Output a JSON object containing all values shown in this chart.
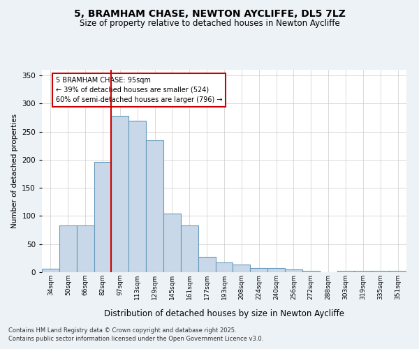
{
  "title1": "5, BRAMHAM CHASE, NEWTON AYCLIFFE, DL5 7LZ",
  "title2": "Size of property relative to detached houses in Newton Aycliffe",
  "xlabel": "Distribution of detached houses by size in Newton Aycliffe",
  "ylabel": "Number of detached properties",
  "categories": [
    "34sqm",
    "50sqm",
    "66sqm",
    "82sqm",
    "97sqm",
    "113sqm",
    "129sqm",
    "145sqm",
    "161sqm",
    "177sqm",
    "193sqm",
    "208sqm",
    "224sqm",
    "240sqm",
    "256sqm",
    "272sqm",
    "288sqm",
    "303sqm",
    "319sqm",
    "335sqm",
    "351sqm"
  ],
  "values": [
    6,
    83,
    83,
    196,
    278,
    269,
    235,
    104,
    83,
    27,
    18,
    14,
    8,
    8,
    5,
    2,
    0,
    3,
    2,
    2,
    2
  ],
  "bar_color": "#c8d8e8",
  "bar_edge_color": "#6699bb",
  "vline_index": 4,
  "vline_color": "#cc0000",
  "annotation_text": "5 BRAMHAM CHASE: 95sqm\n← 39% of detached houses are smaller (524)\n60% of semi-detached houses are larger (796) →",
  "ylim": [
    0,
    360
  ],
  "yticks": [
    0,
    50,
    100,
    150,
    200,
    250,
    300,
    350
  ],
  "footer1": "Contains HM Land Registry data © Crown copyright and database right 2025.",
  "footer2": "Contains public sector information licensed under the Open Government Licence v3.0.",
  "bg_color": "#edf2f7",
  "plot_bg_color": "#ffffff"
}
